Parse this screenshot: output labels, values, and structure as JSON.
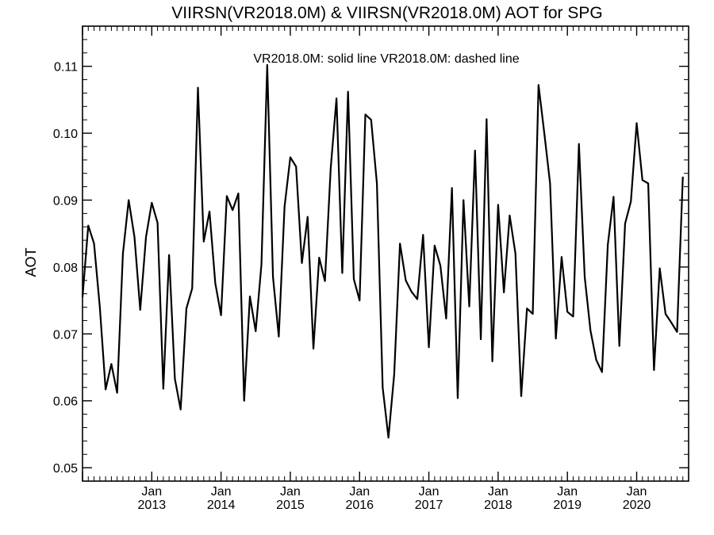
{
  "chart_data": {
    "type": "line",
    "title": "VIIRSN(VR2018.0M) & VIIRSN(VR2018.0M)  AOT for SPG",
    "legend_text": "VR2018.0M: solid line   VR2018.0M: dashed line",
    "xlabel": "",
    "ylabel": "AOT",
    "x_start": "2012-01",
    "x_end": "2020-10",
    "xlim": [
      "2012-01",
      "2020-10"
    ],
    "ylim": [
      0.048,
      0.116
    ],
    "y_ticks": [
      "0.05",
      "0.06",
      "0.07",
      "0.08",
      "0.09",
      "0.10",
      "0.11"
    ],
    "y_tick_values": [
      0.05,
      0.06,
      0.07,
      0.08,
      0.09,
      0.1,
      0.11
    ],
    "x_tick_month": "Jan",
    "x_tick_years": [
      "2013",
      "2014",
      "2015",
      "2016",
      "2017",
      "2018",
      "2019",
      "2020"
    ],
    "grid": false,
    "legend_position": "top-center",
    "series": [
      {
        "name": "VR2018.0M",
        "style": "solid",
        "color": "#000000",
        "values": [
          0.0755,
          0.0862,
          0.0835,
          0.074,
          0.0617,
          0.0655,
          0.0612,
          0.082,
          0.09,
          0.0845,
          0.0736,
          0.0845,
          0.0896,
          0.0866,
          0.0618,
          0.0818,
          0.0633,
          0.0587,
          0.0738,
          0.0768,
          0.1068,
          0.0838,
          0.0883,
          0.0776,
          0.0728,
          0.0906,
          0.0885,
          0.091,
          0.06,
          0.0756,
          0.0704,
          0.0804,
          0.1102,
          0.0785,
          0.0696,
          0.089,
          0.0964,
          0.095,
          0.0806,
          0.0875,
          0.0678,
          0.0814,
          0.0779,
          0.0948,
          0.1052,
          0.0791,
          0.1062,
          0.0782,
          0.075,
          0.1028,
          0.102,
          0.0925,
          0.062,
          0.0545,
          0.064,
          0.0835,
          0.078,
          0.0763,
          0.0752,
          0.0848,
          0.068,
          0.0832,
          0.0802,
          0.0723,
          0.0918,
          0.0604,
          0.09,
          0.0741,
          0.0974,
          0.0692,
          0.1021,
          0.0659,
          0.0893,
          0.0762,
          0.0877,
          0.082,
          0.0607,
          0.0738,
          0.073,
          0.1072,
          0.1,
          0.0925,
          0.0693,
          0.0815,
          0.0733,
          0.0726,
          0.0984,
          0.0785,
          0.0705,
          0.0661,
          0.0643,
          0.0833,
          0.0905,
          0.0682,
          0.0865,
          0.0898,
          0.1015,
          0.093,
          0.0925,
          0.0646,
          0.0798,
          0.073,
          0.0717,
          0.0703,
          0.0935
        ]
      }
    ]
  }
}
